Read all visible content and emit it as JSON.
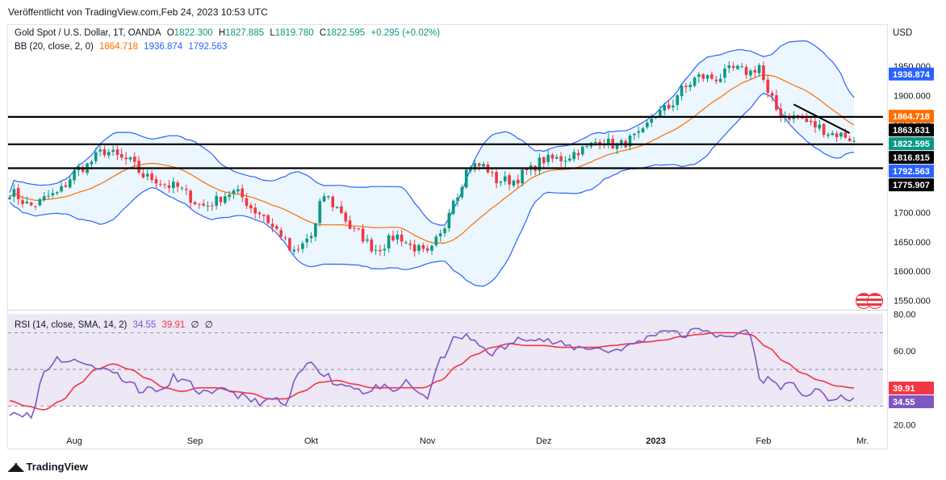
{
  "header": {
    "published": "Veröffentlicht von TradingView.com,Feb 24, 2023 10:53 UTC"
  },
  "legend_main": {
    "symbol": "Gold Spot / U.S. Dollar, 1T, OANDA",
    "open_label": "O",
    "open": "1822.300",
    "high_label": "H",
    "high": "1827.885",
    "low_label": "L",
    "low": "1819.780",
    "close_label": "C",
    "close": "1822.595",
    "change": "+0.295 (+0.02%)"
  },
  "legend_bb": {
    "name": "BB (20, close, 2, 0)",
    "basis": "1864.718",
    "upper": "1936.874",
    "lower": "1792.563"
  },
  "legend_rsi": {
    "name": "RSI (14, close, SMA, 14, 2)",
    "rsi": "34.55",
    "sma": "39.91",
    "extra1": "∅",
    "extra2": "∅"
  },
  "currency": "USD",
  "footer": {
    "brand": "TradingView"
  },
  "colors": {
    "up": "#089981",
    "down": "#f23645",
    "bb_band": "#2962ff",
    "bb_basis": "#ff6d00",
    "bb_fill": "#e3f2fd",
    "rsi_line": "#7e57c2",
    "rsi_sma": "#f23645",
    "rsi_bg": "#ede7f6",
    "hline": "#000000"
  },
  "chart_data": {
    "type": "candlestick",
    "price_axis": {
      "ylim": [
        1534,
        2022
      ],
      "ticks": [
        "1950.000",
        "1900.000",
        "1850.000",
        "1800.000",
        "1750.000",
        "1700.000",
        "1650.000",
        "1600.000",
        "1550.000"
      ],
      "tick_values": [
        1950,
        1900,
        1850,
        1800,
        1750,
        1700,
        1650,
        1600,
        1550
      ]
    },
    "rsi_axis": {
      "ylim": [
        14,
        82
      ],
      "ticks": [
        "80.00",
        "60.00",
        "20.00"
      ],
      "tick_values": [
        80,
        60,
        20
      ],
      "bands": [
        70,
        50,
        30
      ]
    },
    "x_axis": {
      "labels": [
        "Aug",
        "Sep",
        "Okt",
        "Nov",
        "Dez",
        "2023",
        "Feb",
        "Mr."
      ],
      "label_index": [
        15,
        43,
        70,
        97,
        124,
        150,
        175,
        198
      ],
      "total_bars": 200
    },
    "horizontal_lines": [
      1863.631,
      1816.815,
      1775.907
    ],
    "trendline": [
      [
        182,
        1885
      ],
      [
        195,
        1836
      ]
    ],
    "price_labels": [
      {
        "text": "1936.874",
        "value": 1936.874,
        "kind": "bb_upper"
      },
      {
        "text": "1864.718",
        "value": 1864.718,
        "kind": "bb_basis"
      },
      {
        "text": "1863.631",
        "value": 1863.631,
        "kind": "hline"
      },
      {
        "text": "1822.595",
        "value": 1822.595,
        "kind": "close"
      },
      {
        "text": "1816.815",
        "value": 1816.815,
        "kind": "hline"
      },
      {
        "text": "1792.563",
        "value": 1792.563,
        "kind": "bb_lower"
      },
      {
        "text": "1775.907",
        "value": 1775.907,
        "kind": "hline"
      }
    ],
    "rsi_labels": [
      {
        "text": "39.91",
        "value": 39.91,
        "kind": "sma"
      },
      {
        "text": "34.55",
        "value": 34.55,
        "kind": "rsi"
      }
    ],
    "close_anchors": [
      [
        0,
        1735
      ],
      [
        5,
        1712
      ],
      [
        10,
        1730
      ],
      [
        17,
        1778
      ],
      [
        22,
        1805
      ],
      [
        27,
        1790
      ],
      [
        32,
        1760
      ],
      [
        38,
        1745
      ],
      [
        45,
        1712
      ],
      [
        52,
        1735
      ],
      [
        58,
        1700
      ],
      [
        62,
        1670
      ],
      [
        66,
        1630
      ],
      [
        70,
        1660
      ],
      [
        73,
        1730
      ],
      [
        76,
        1708
      ],
      [
        80,
        1668
      ],
      [
        85,
        1638
      ],
      [
        90,
        1660
      ],
      [
        94,
        1640
      ],
      [
        97,
        1628
      ],
      [
        100,
        1660
      ],
      [
        103,
        1725
      ],
      [
        107,
        1780
      ],
      [
        110,
        1780
      ],
      [
        113,
        1755
      ],
      [
        117,
        1755
      ],
      [
        120,
        1770
      ],
      [
        124,
        1790
      ],
      [
        128,
        1792
      ],
      [
        133,
        1808
      ],
      [
        137,
        1823
      ],
      [
        141,
        1815
      ],
      [
        146,
        1830
      ],
      [
        150,
        1868
      ],
      [
        153,
        1880
      ],
      [
        156,
        1910
      ],
      [
        160,
        1932
      ],
      [
        164,
        1930
      ],
      [
        168,
        1945
      ],
      [
        172,
        1940
      ],
      [
        174,
        1952
      ],
      [
        176,
        1900
      ],
      [
        179,
        1868
      ],
      [
        183,
        1862
      ],
      [
        187,
        1848
      ],
      [
        191,
        1835
      ],
      [
        194,
        1832
      ],
      [
        196,
        1822.6
      ]
    ],
    "rsi_anchors": [
      [
        0,
        27
      ],
      [
        3,
        26
      ],
      [
        5,
        24
      ],
      [
        8,
        49
      ],
      [
        11,
        56
      ],
      [
        14,
        54
      ],
      [
        17,
        55
      ],
      [
        20,
        50
      ],
      [
        23,
        51
      ],
      [
        25,
        47
      ],
      [
        28,
        43
      ],
      [
        31,
        38
      ],
      [
        33,
        40
      ],
      [
        36,
        38
      ],
      [
        38,
        46
      ],
      [
        41,
        43
      ],
      [
        44,
        38
      ],
      [
        47,
        36
      ],
      [
        50,
        40
      ],
      [
        53,
        36
      ],
      [
        56,
        33
      ],
      [
        59,
        32
      ],
      [
        62,
        34
      ],
      [
        64,
        29
      ],
      [
        66,
        42
      ],
      [
        68,
        50
      ],
      [
        70,
        54
      ],
      [
        73,
        48
      ],
      [
        76,
        42
      ],
      [
        80,
        41
      ],
      [
        83,
        37
      ],
      [
        86,
        41
      ],
      [
        89,
        37
      ],
      [
        92,
        43
      ],
      [
        94,
        39
      ],
      [
        97,
        35
      ],
      [
        100,
        55
      ],
      [
        103,
        66
      ],
      [
        106,
        68
      ],
      [
        109,
        63
      ],
      [
        112,
        59
      ],
      [
        115,
        62
      ],
      [
        118,
        66
      ],
      [
        121,
        68
      ],
      [
        124,
        66
      ],
      [
        127,
        64
      ],
      [
        131,
        62
      ],
      [
        135,
        62
      ],
      [
        139,
        60
      ],
      [
        143,
        62
      ],
      [
        147,
        66
      ],
      [
        150,
        70
      ],
      [
        153,
        72
      ],
      [
        156,
        68
      ],
      [
        159,
        71
      ],
      [
        162,
        72
      ],
      [
        165,
        67
      ],
      [
        168,
        68
      ],
      [
        170,
        71
      ],
      [
        172,
        70
      ],
      [
        174,
        44
      ],
      [
        176,
        45
      ],
      [
        179,
        41
      ],
      [
        182,
        41
      ],
      [
        185,
        36
      ],
      [
        188,
        38
      ],
      [
        191,
        33
      ],
      [
        194,
        34.5
      ],
      [
        196,
        34.55
      ]
    ],
    "rsi_sma_anchors": [
      [
        0,
        33
      ],
      [
        4,
        30
      ],
      [
        8,
        28
      ],
      [
        12,
        33
      ],
      [
        16,
        42
      ],
      [
        20,
        50
      ],
      [
        24,
        53
      ],
      [
        28,
        50
      ],
      [
        32,
        45
      ],
      [
        36,
        40
      ],
      [
        40,
        38
      ],
      [
        44,
        40
      ],
      [
        48,
        40
      ],
      [
        52,
        38
      ],
      [
        56,
        37
      ],
      [
        60,
        34
      ],
      [
        64,
        34
      ],
      [
        68,
        38
      ],
      [
        72,
        43
      ],
      [
        76,
        44
      ],
      [
        80,
        42
      ],
      [
        84,
        40
      ],
      [
        88,
        40
      ],
      [
        92,
        40
      ],
      [
        96,
        40
      ],
      [
        100,
        44
      ],
      [
        104,
        52
      ],
      [
        108,
        58
      ],
      [
        112,
        62
      ],
      [
        116,
        64
      ],
      [
        120,
        63
      ],
      [
        124,
        63
      ],
      [
        128,
        62
      ],
      [
        132,
        62
      ],
      [
        136,
        62
      ],
      [
        140,
        63
      ],
      [
        144,
        64
      ],
      [
        148,
        65
      ],
      [
        152,
        66
      ],
      [
        156,
        68
      ],
      [
        160,
        69
      ],
      [
        164,
        70
      ],
      [
        168,
        70
      ],
      [
        172,
        69
      ],
      [
        176,
        62
      ],
      [
        180,
        54
      ],
      [
        184,
        48
      ],
      [
        188,
        44
      ],
      [
        192,
        41
      ],
      [
        196,
        39.91
      ]
    ]
  }
}
